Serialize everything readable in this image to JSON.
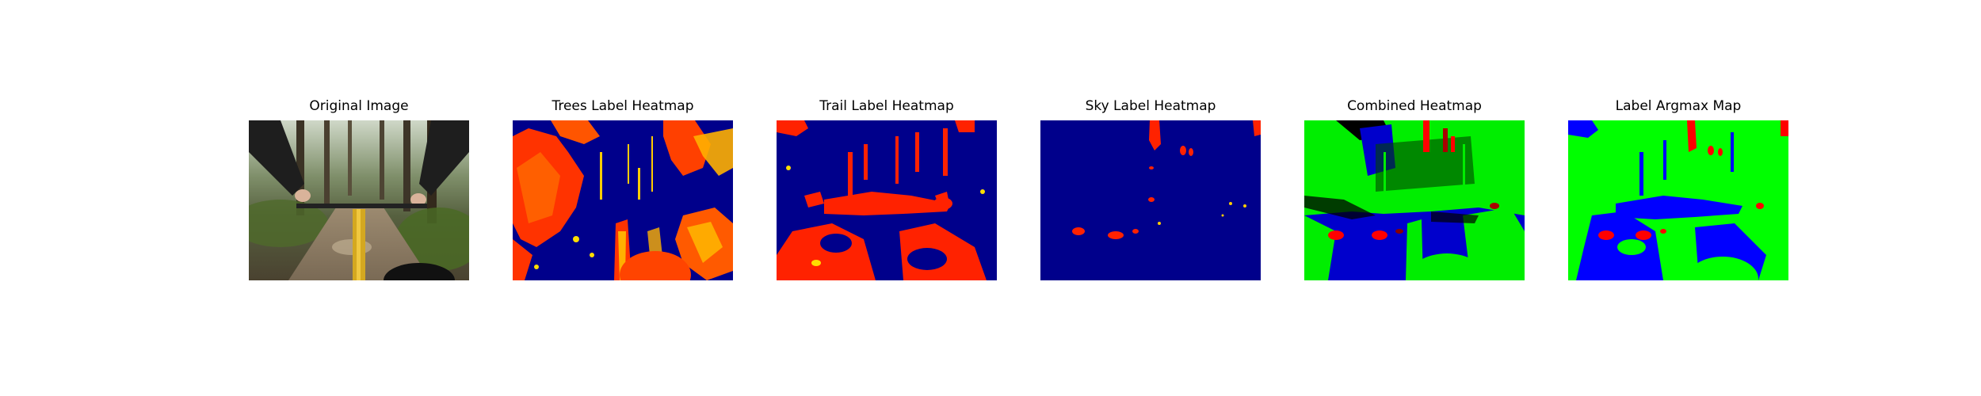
{
  "figure": {
    "panels": [
      {
        "title": "Original Image",
        "icon": "photo-image"
      },
      {
        "title": "Trees Label Heatmap",
        "icon": "heatmap-image"
      },
      {
        "title": "Trail Label Heatmap",
        "icon": "heatmap-image"
      },
      {
        "title": "Sky Label Heatmap",
        "icon": "heatmap-image"
      },
      {
        "title": "Combined Heatmap",
        "icon": "heatmap-image"
      },
      {
        "title": "Label Argmax Map",
        "icon": "label-map-image"
      }
    ],
    "colors": {
      "heat_low": "#00008b",
      "heat_high": "#ff2a00",
      "heat_mid": "#ffcc00",
      "label_trees": "#00ff00",
      "label_trail": "#0000ff",
      "label_sky": "#ff0000"
    }
  }
}
